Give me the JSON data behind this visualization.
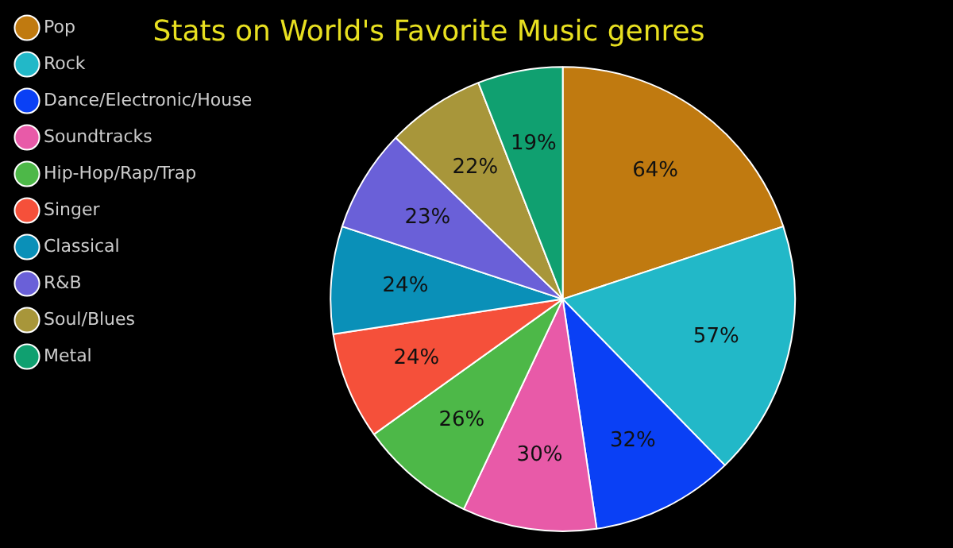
{
  "chart_data": {
    "type": "pie",
    "title": "Stats on World's Favorite Music genres",
    "categories": [
      "Pop",
      "Rock",
      "Dance/Electronic/House",
      "Soundtracks",
      "Hip-Hop/Rap/Trap",
      "Singer",
      "Classical",
      "R&B",
      "Soul/Blues",
      "Metal"
    ],
    "values": [
      64,
      57,
      32,
      30,
      26,
      24,
      24,
      23,
      22,
      19
    ],
    "colors": [
      "#c07a10",
      "#22b8c8",
      "#0a40f5",
      "#e85aa8",
      "#4db848",
      "#f5503a",
      "#0a90b8",
      "#6a60d8",
      "#a8963a",
      "#10a070"
    ],
    "value_labels": [
      "64%",
      "57%",
      "32%",
      "30%",
      "26%",
      "24%",
      "24%",
      "23%",
      "22%",
      "19%"
    ],
    "legend": "left"
  }
}
